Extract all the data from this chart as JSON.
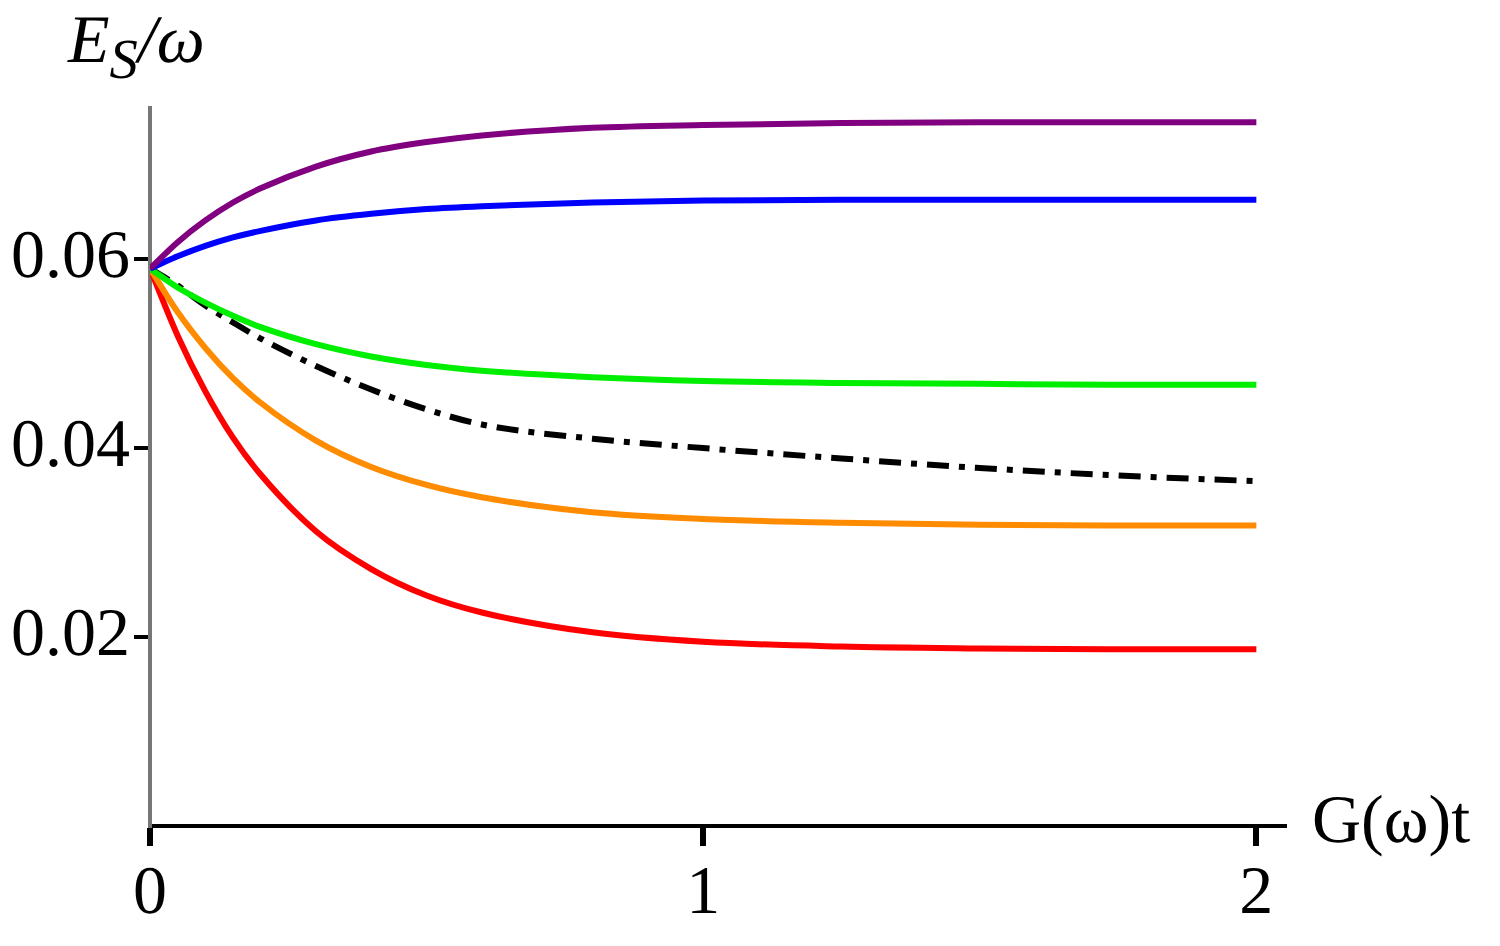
{
  "chart_data": {
    "type": "line",
    "xlabel": "G(ω)t",
    "ylabel": "E$_{S}$/ω",
    "x": [
      0,
      0.05,
      0.1,
      0.15,
      0.2,
      0.3,
      0.4,
      0.5,
      0.6,
      0.8,
      1,
      1.25,
      1.5,
      1.75,
      2
    ],
    "series": [
      {
        "color": "#800080",
        "values": [
          0.059,
          0.0618,
          0.0641,
          0.066,
          0.0675,
          0.0698,
          0.0714,
          0.0724,
          0.0731,
          0.0739,
          0.0742,
          0.0744,
          0.0745,
          0.0745,
          0.0745
        ]
      },
      {
        "color": "#0000ff",
        "values": [
          0.059,
          0.0603,
          0.0614,
          0.0623,
          0.063,
          0.0641,
          0.0648,
          0.0653,
          0.0656,
          0.066,
          0.0662,
          0.0663,
          0.0663,
          0.0663,
          0.0663
        ]
      },
      {
        "color": "#00ee00",
        "values": [
          0.059,
          0.057,
          0.0554,
          0.054,
          0.0528,
          0.051,
          0.0497,
          0.0488,
          0.0482,
          0.0475,
          0.0471,
          0.0469,
          0.0468,
          0.0467,
          0.0467
        ]
      },
      {
        "color": "#000000",
        "line_style": "dashed",
        "values": [
          0.059,
          0.0572,
          0.0551,
          0.0533,
          0.0516,
          0.0487,
          0.0462,
          0.0441,
          0.0425,
          0.041,
          0.04,
          0.0389,
          0.0379,
          0.0371,
          0.0365
        ]
      },
      {
        "color": "#ff8c00",
        "values": [
          0.059,
          0.0544,
          0.0506,
          0.0474,
          0.0448,
          0.0408,
          0.038,
          0.0361,
          0.0348,
          0.0332,
          0.0325,
          0.0321,
          0.0319,
          0.0318,
          0.0318
        ]
      },
      {
        "color": "#ff0000",
        "values": [
          0.059,
          0.0519,
          0.046,
          0.0411,
          0.0372,
          0.0312,
          0.0272,
          0.0244,
          0.0226,
          0.0205,
          0.0195,
          0.019,
          0.0188,
          0.0187,
          0.0187
        ]
      }
    ],
    "xlim": [
      0,
      2.05
    ],
    "ylim": [
      0,
      0.076
    ],
    "xticks": [
      0,
      1,
      2
    ],
    "yticks": [
      0.02,
      0.04,
      0.06
    ],
    "grid": false,
    "legend": false,
    "marker": "none",
    "line_style": "solid"
  }
}
